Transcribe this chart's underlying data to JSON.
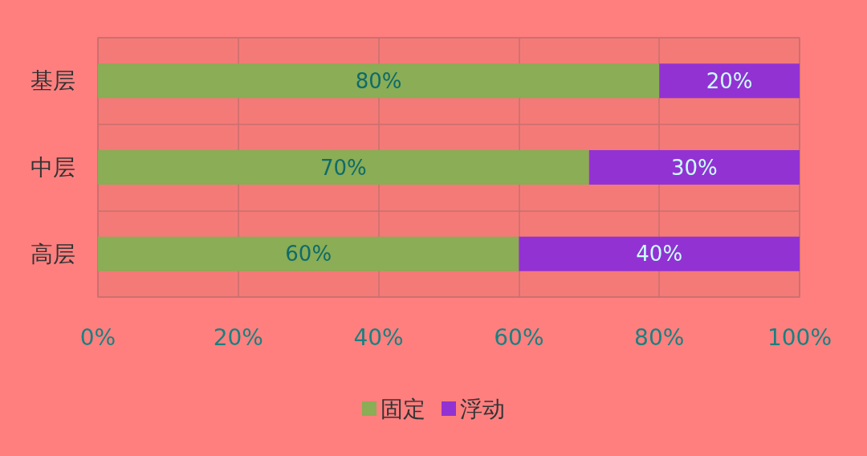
{
  "chart_data": {
    "type": "bar",
    "orientation": "horizontal",
    "stacked": true,
    "categories": [
      "基层",
      "中层",
      "高层"
    ],
    "series": [
      {
        "name": "固定",
        "color": "#8aad55",
        "values": [
          80,
          70,
          60
        ],
        "value_labels": [
          "80%",
          "70%",
          "60%"
        ]
      },
      {
        "name": "浮动",
        "color": "#9332d2",
        "values": [
          20,
          30,
          40
        ],
        "value_labels": [
          "20%",
          "30%",
          "40%"
        ]
      }
    ],
    "xlim": [
      0,
      100
    ],
    "xticks": [
      {
        "value": 0,
        "label": "0%"
      },
      {
        "value": 20,
        "label": "20%"
      },
      {
        "value": 40,
        "label": "40%"
      },
      {
        "value": 60,
        "label": "60%"
      },
      {
        "value": 80,
        "label": "80%"
      },
      {
        "value": 100,
        "label": "100%"
      }
    ],
    "grid": true,
    "legend": "bottom"
  }
}
